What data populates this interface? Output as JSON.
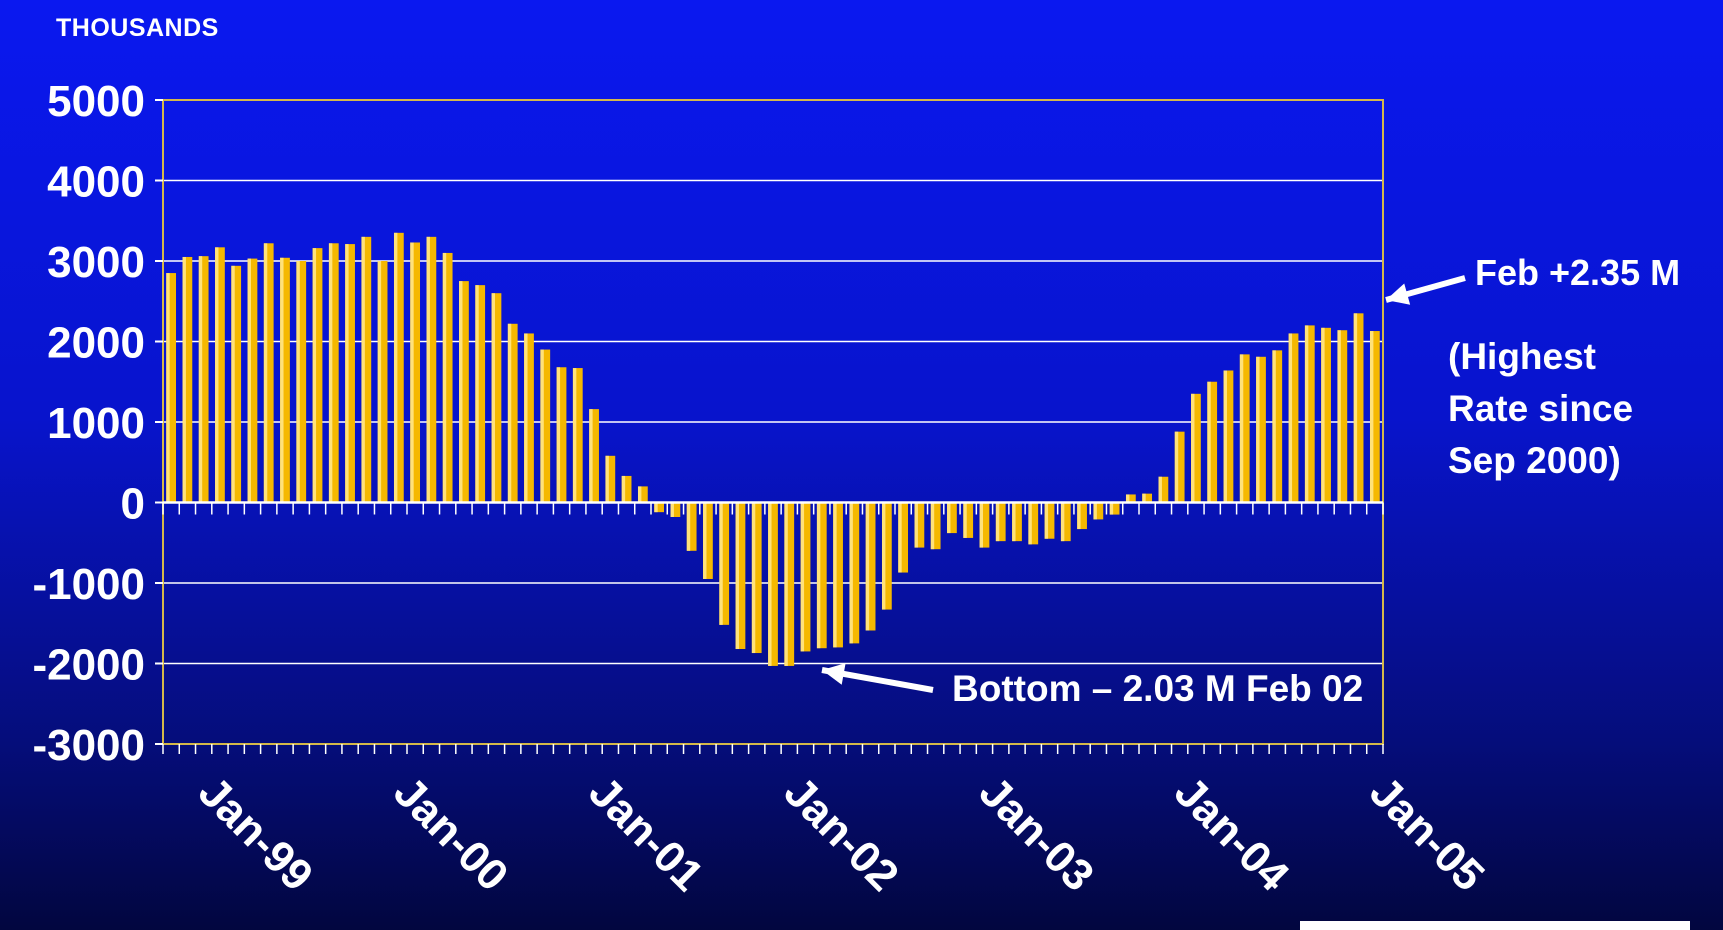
{
  "units_label": "THOUSANDS",
  "chart_data": {
    "type": "bar",
    "ylim": [
      -3000,
      5000
    ],
    "yticks": [
      5000,
      4000,
      3000,
      2000,
      1000,
      0,
      -1000,
      -2000,
      -3000
    ],
    "x_tick_labels": [
      "Jan-99",
      "Jan-00",
      "Jan-01",
      "Jan-02",
      "Jan-03",
      "Jan-04",
      "Jan-05"
    ],
    "x_tick_month_index": [
      0,
      12,
      24,
      36,
      48,
      60,
      72
    ],
    "start_month": "Jan-99",
    "months_count": 75,
    "grid": true,
    "bar_color": "#f5b800",
    "bar_highlight": "#ffe27a",
    "plot_border_color": "#d4b84a",
    "values": [
      2850,
      3050,
      3060,
      3170,
      2940,
      3030,
      3220,
      3040,
      3000,
      3160,
      3220,
      3210,
      3300,
      3000,
      3350,
      3230,
      3300,
      3100,
      2750,
      2700,
      2600,
      2220,
      2100,
      1900,
      1680,
      1670,
      1160,
      580,
      330,
      200,
      -120,
      -180,
      -600,
      -950,
      -1520,
      -1820,
      -1870,
      -2030,
      -2030,
      -1850,
      -1810,
      -1800,
      -1750,
      -1590,
      -1330,
      -870,
      -560,
      -580,
      -380,
      -440,
      -560,
      -480,
      -480,
      -520,
      -450,
      -480,
      -330,
      -210,
      -150,
      100,
      110,
      320,
      880,
      1350,
      1500,
      1640,
      1840,
      1810,
      1890,
      2100,
      2200,
      2170,
      2140,
      2350,
      2130
    ]
  },
  "annotations": {
    "feb": "Feb +2.35 M",
    "highest": [
      "(Highest",
      "Rate since",
      "Sep 2000)"
    ],
    "bottom": "Bottom – 2.03 M Feb 02"
  }
}
